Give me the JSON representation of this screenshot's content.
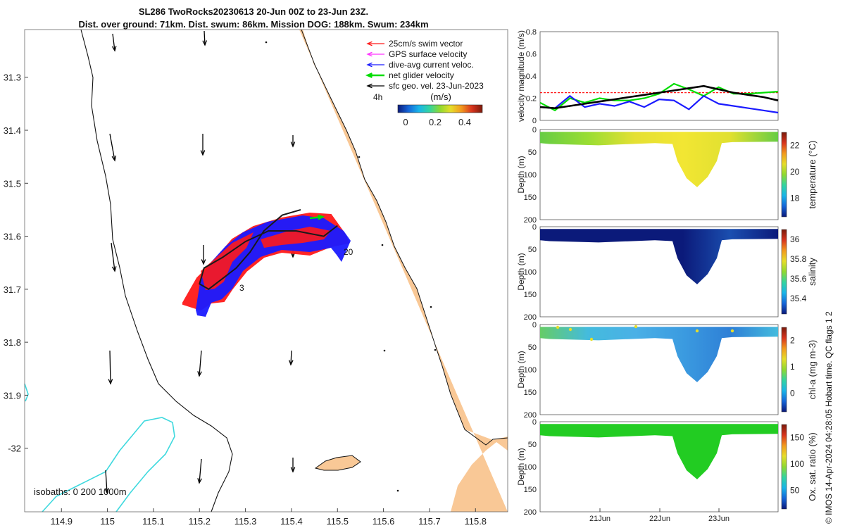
{
  "title_line1": "SL286 TwoRocks20230613 20-Jun 00Z to 23-Jun 23Z.",
  "title_line2": "Dist. over ground: 71km. Dist. swum: 86km. Mission DOG: 188km. Swum: 234km",
  "side_note": "© IMOS 14-Apr-2024 04:28:05 Hobart time. QC flags 1  2",
  "colors": {
    "land": "#f9c896",
    "isobath": "#3fd9de",
    "track": "#1a1a1a",
    "swim": "#ff1a1a",
    "gps": "#ff33ff",
    "current": "#1a1aff",
    "glider": "#00dd00",
    "geo": "#000000"
  },
  "chart_data": [
    {
      "type": "map",
      "name": "trajectory-map",
      "xlim": [
        114.82,
        115.87
      ],
      "ylim": [
        -32.12,
        -31.21
      ],
      "x_ticks": [
        "114.9",
        "115",
        "115.1",
        "115.2",
        "115.3",
        "115.4",
        "115.5",
        "115.6",
        "115.7",
        "115.8"
      ],
      "y_ticks": [
        "31.3",
        "31.4",
        "31.5",
        "31.6",
        "31.7",
        "31.8",
        "31.9",
        "-32"
      ],
      "legend": [
        "25cm/s swim vector",
        "GPS surface velocity",
        "dive-avg current veloc.",
        "net glider velocity",
        "sfc geo. vel. 23-Jun-2023"
      ],
      "legend_extra": "4h",
      "colorbar_label": "(m/s)",
      "colorbar_ticks": [
        "0",
        "0.2",
        "0.4"
      ],
      "isobath_label": "isobaths: 0   200  1000m",
      "track_labels": [
        "20",
        "3"
      ],
      "track": [
        [
          115.42,
          -31.55
        ],
        [
          115.38,
          -31.56
        ],
        [
          115.34,
          -31.59
        ],
        [
          115.31,
          -31.63
        ],
        [
          115.28,
          -31.66
        ],
        [
          115.25,
          -31.68
        ],
        [
          115.22,
          -31.7
        ],
        [
          115.2,
          -31.69
        ],
        [
          115.21,
          -31.66
        ],
        [
          115.25,
          -31.64
        ],
        [
          115.3,
          -31.61
        ],
        [
          115.35,
          -31.59
        ],
        [
          115.41,
          -31.59
        ],
        [
          115.47,
          -31.6
        ],
        [
          115.5,
          -31.58
        ]
      ]
    },
    {
      "type": "line",
      "name": "velocity-panel",
      "ylabel": "velocity magnitude (m/s)",
      "x": [
        0,
        0.25,
        0.5,
        0.75,
        1,
        1.25,
        1.5,
        1.75,
        2,
        2.25,
        2.5,
        2.75,
        3,
        3.25,
        3.5,
        3.75,
        4
      ],
      "ylim": [
        0,
        0.8
      ],
      "y_ticks": [
        "0",
        "0.2",
        "0.4",
        "0.6",
        "0.8"
      ],
      "series": [
        {
          "name": "swim",
          "color": "#ff1a1a",
          "values": [
            0.25,
            0.25,
            0.25,
            0.25,
            0.25,
            0.25,
            0.25,
            0.25,
            0.25,
            0.25,
            0.25,
            0.25,
            0.25,
            0.25,
            0.25,
            0.25,
            0.25
          ]
        },
        {
          "name": "net glider",
          "color": "#00dd00",
          "values": [
            0.16,
            0.09,
            0.2,
            0.16,
            0.2,
            0.18,
            0.18,
            0.2,
            0.24,
            0.33,
            0.28,
            0.22,
            0.3,
            0.24,
            0.24,
            0.25,
            0.26
          ]
        },
        {
          "name": "current",
          "color": "#1a1aff",
          "values": [
            0.12,
            0.11,
            0.22,
            0.12,
            0.15,
            0.13,
            0.17,
            0.12,
            0.19,
            0.18,
            0.1,
            0.22,
            0.15,
            0.13,
            0.11,
            0.09,
            0.07
          ]
        },
        {
          "name": "geo",
          "color": "#000000",
          "values": [
            0.12,
            0.11,
            0.13,
            0.15,
            0.17,
            0.19,
            0.21,
            0.23,
            0.25,
            0.27,
            0.29,
            0.31,
            0.28,
            0.25,
            0.23,
            0.21,
            0.18
          ]
        }
      ]
    },
    {
      "type": "section",
      "name": "temperature-panel",
      "label": "temperature (°C)",
      "ylabel": "Depth (m)",
      "ylim": [
        0,
        200
      ],
      "y_ticks": [
        "0",
        "50",
        "100",
        "150",
        "200"
      ],
      "colorbar_ticks": [
        "18",
        "20",
        "22"
      ],
      "colors": [
        "#66cc44",
        "#99dd33",
        "#e5e033",
        "#f2e633",
        "#e0e030",
        "#66cc44"
      ]
    },
    {
      "type": "section",
      "name": "salinity-panel",
      "label": "salinity",
      "ylabel": "Depth (m)",
      "ylim": [
        0,
        200
      ],
      "y_ticks": [
        "0",
        "50",
        "100",
        "150",
        "200"
      ],
      "colorbar_ticks": [
        "35.4",
        "35.6",
        "35.8",
        "36"
      ],
      "colors": [
        "#0b1a7a",
        "#0b1a7a",
        "#0b1a7a",
        "#0b1a7a",
        "#1b4fb0",
        "#0b1a7a"
      ]
    },
    {
      "type": "section",
      "name": "chla-panel",
      "label": "chl-a (mg m-3)",
      "ylabel": "Depth (m)",
      "ylim": [
        0,
        200
      ],
      "y_ticks": [
        "0",
        "50",
        "100",
        "150",
        "200"
      ],
      "colorbar_ticks": [
        "0",
        "1",
        "2"
      ],
      "colors": [
        "#66cc66",
        "#44bbdd",
        "#4ab0e6",
        "#3b9be0",
        "#2e7fd6",
        "#44bbdd"
      ]
    },
    {
      "type": "section",
      "name": "oxygen-panel",
      "label": "Ox. sat. ratio (%)",
      "ylabel": "Depth (m)",
      "ylim": [
        0,
        200
      ],
      "y_ticks": [
        "0",
        "50",
        "100",
        "150",
        "200"
      ],
      "colorbar_ticks": [
        "50",
        "100",
        "150"
      ],
      "colors": [
        "#22cc22",
        "#22cc22",
        "#22cc22",
        "#22cc22",
        "#22cc22",
        "#22cc22"
      ]
    }
  ],
  "time_axis": [
    "21Jun",
    "22Jun",
    "23Jun"
  ]
}
